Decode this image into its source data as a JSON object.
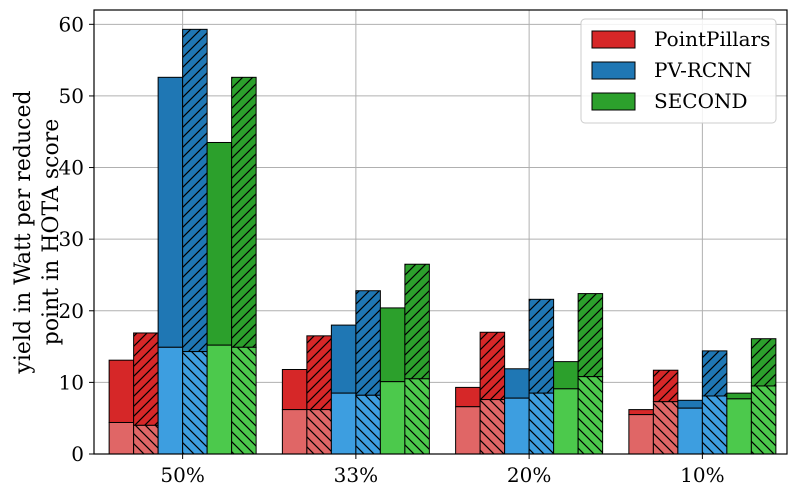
{
  "chart_data": {
    "type": "bar",
    "stacked": true,
    "ylabel_line1": "yield in Watt per reduced",
    "ylabel_line2": "point in HOTA score",
    "xlabel": "",
    "categories": [
      "50%",
      "33%",
      "20%",
      "10%"
    ],
    "yticks": [
      "0",
      "10",
      "20",
      "30",
      "40",
      "50",
      "60"
    ],
    "ylim": [
      0,
      62
    ],
    "grid": true,
    "legend_position": "top-right",
    "variants": [
      "plain",
      "hatched"
    ],
    "series": [
      {
        "name": "PointPillars",
        "color": "#d62728",
        "light_color": "#e06666",
        "plain": {
          "bottom": [
            4.4,
            6.2,
            6.6,
            5.5
          ],
          "total": [
            13.1,
            11.8,
            9.3,
            6.2
          ]
        },
        "hatched": {
          "bottom": [
            4.0,
            6.2,
            7.6,
            7.3
          ],
          "total": [
            16.9,
            16.5,
            17.0,
            11.7
          ]
        }
      },
      {
        "name": "PV-RCNN",
        "color": "#1f77b4",
        "light_color": "#3d9ee0",
        "plain": {
          "bottom": [
            14.9,
            8.5,
            7.8,
            6.4
          ],
          "total": [
            52.6,
            18.0,
            11.9,
            7.5
          ]
        },
        "hatched": {
          "bottom": [
            14.3,
            8.2,
            8.5,
            8.1
          ],
          "total": [
            59.3,
            22.8,
            21.6,
            14.4
          ]
        }
      },
      {
        "name": "SECOND",
        "color": "#2ca02c",
        "light_color": "#4cc94c",
        "plain": {
          "bottom": [
            15.2,
            10.1,
            9.1,
            7.7
          ],
          "total": [
            43.5,
            20.4,
            12.9,
            8.5
          ]
        },
        "hatched": {
          "bottom": [
            14.9,
            10.5,
            10.8,
            9.5
          ],
          "total": [
            52.6,
            26.5,
            22.4,
            16.1
          ]
        }
      }
    ]
  }
}
